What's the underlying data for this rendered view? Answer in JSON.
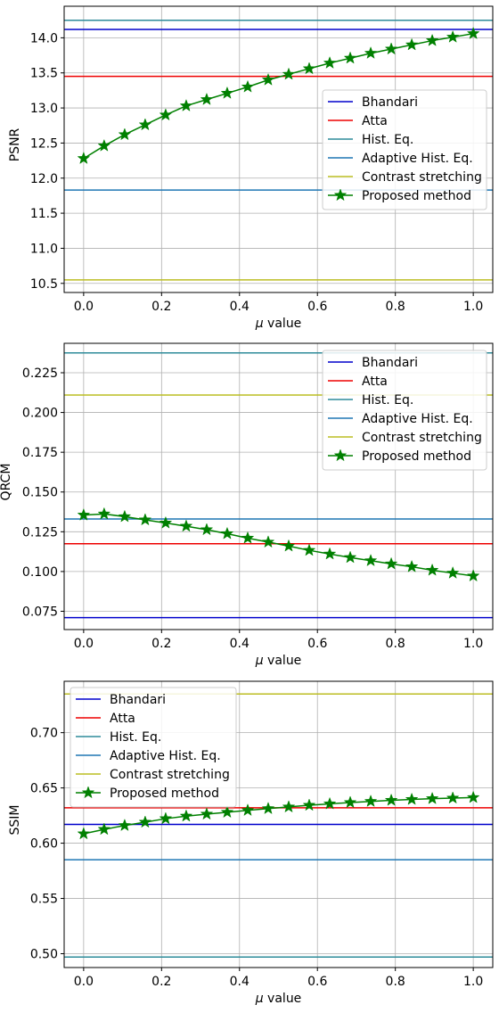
{
  "chart_data": [
    {
      "type": "line",
      "xlabel_prefix": "μ",
      "xlabel_rest": " value",
      "ylabel": "PSNR",
      "xlim": [
        -0.05,
        1.05
      ],
      "ylim": [
        10.37,
        14.45
      ],
      "xticks": [
        0.0,
        0.2,
        0.4,
        0.6,
        0.8,
        1.0
      ],
      "xtick_labels": [
        "0.0",
        "0.2",
        "0.4",
        "0.6",
        "0.8",
        "1.0"
      ],
      "yticks": [
        10.5,
        11.0,
        11.5,
        12.0,
        12.5,
        13.0,
        13.5,
        14.0
      ],
      "ytick_labels": [
        "10.5",
        "11.0",
        "11.5",
        "12.0",
        "12.5",
        "13.0",
        "13.5",
        "14.0"
      ],
      "grid": true,
      "legend_position": "center-right",
      "baselines": [
        {
          "name": "Bhandari",
          "value": 14.12,
          "color": "#0000cc"
        },
        {
          "name": "Atta",
          "value": 13.45,
          "color": "#ee0000"
        },
        {
          "name": "Hist. Eq.",
          "value": 14.25,
          "color": "#2e8b9a"
        },
        {
          "name": "Adaptive Hist. Eq.",
          "value": 11.83,
          "color": "#1f77b4"
        },
        {
          "name": "Contrast stretching",
          "value": 10.55,
          "color": "#bcbd22"
        }
      ],
      "series": [
        {
          "name": "Proposed method",
          "color": "#008000",
          "x": [
            0.0,
            0.0526,
            0.1053,
            0.1579,
            0.2105,
            0.2632,
            0.3158,
            0.3684,
            0.4211,
            0.4737,
            0.5263,
            0.5789,
            0.6316,
            0.6842,
            0.7368,
            0.7895,
            0.8421,
            0.8947,
            0.9474,
            1.0
          ],
          "y": [
            12.28,
            12.46,
            12.62,
            12.76,
            12.9,
            13.03,
            13.12,
            13.21,
            13.3,
            13.4,
            13.48,
            13.56,
            13.64,
            13.71,
            13.78,
            13.84,
            13.9,
            13.96,
            14.01,
            14.06
          ]
        }
      ]
    },
    {
      "type": "line",
      "xlabel_prefix": "μ",
      "xlabel_rest": " value",
      "ylabel": "QRCM",
      "xlim": [
        -0.05,
        1.05
      ],
      "ylim": [
        0.0635,
        0.2435
      ],
      "xticks": [
        0.0,
        0.2,
        0.4,
        0.6,
        0.8,
        1.0
      ],
      "xtick_labels": [
        "0.0",
        "0.2",
        "0.4",
        "0.6",
        "0.8",
        "1.0"
      ],
      "yticks": [
        0.075,
        0.1,
        0.125,
        0.15,
        0.175,
        0.2,
        0.225
      ],
      "ytick_labels": [
        "0.075",
        "0.100",
        "0.125",
        "0.150",
        "0.175",
        "0.200",
        "0.225"
      ],
      "grid": true,
      "legend_position": "top-right",
      "baselines": [
        {
          "name": "Bhandari",
          "value": 0.071,
          "color": "#0000cc"
        },
        {
          "name": "Atta",
          "value": 0.1175,
          "color": "#ee0000"
        },
        {
          "name": "Hist. Eq.",
          "value": 0.2375,
          "color": "#2e8b9a"
        },
        {
          "name": "Adaptive Hist. Eq.",
          "value": 0.133,
          "color": "#1f77b4"
        },
        {
          "name": "Contrast stretching",
          "value": 0.211,
          "color": "#bcbd22"
        }
      ],
      "series": [
        {
          "name": "Proposed method",
          "color": "#008000",
          "x": [
            0.0,
            0.0526,
            0.1053,
            0.1579,
            0.2105,
            0.2632,
            0.3158,
            0.3684,
            0.4211,
            0.4737,
            0.5263,
            0.5789,
            0.6316,
            0.6842,
            0.7368,
            0.7895,
            0.8421,
            0.8947,
            0.9474,
            1.0
          ],
          "y": [
            0.1355,
            0.1362,
            0.1345,
            0.1325,
            0.1305,
            0.1285,
            0.1263,
            0.1238,
            0.121,
            0.1185,
            0.116,
            0.1133,
            0.111,
            0.1088,
            0.1068,
            0.1048,
            0.103,
            0.1008,
            0.099,
            0.0972
          ]
        }
      ]
    },
    {
      "type": "line",
      "xlabel_prefix": "μ",
      "xlabel_rest": " value",
      "ylabel": "SSIM",
      "xlim": [
        -0.05,
        1.05
      ],
      "ylim": [
        0.4875,
        0.7465
      ],
      "xticks": [
        0.0,
        0.2,
        0.4,
        0.6,
        0.8,
        1.0
      ],
      "xtick_labels": [
        "0.0",
        "0.2",
        "0.4",
        "0.6",
        "0.8",
        "1.0"
      ],
      "yticks": [
        0.5,
        0.55,
        0.6,
        0.65,
        0.7
      ],
      "ytick_labels": [
        "0.50",
        "0.55",
        "0.60",
        "0.65",
        "0.70"
      ],
      "grid": true,
      "legend_position": "top-left",
      "baselines": [
        {
          "name": "Bhandari",
          "value": 0.617,
          "color": "#0000cc"
        },
        {
          "name": "Atta",
          "value": 0.632,
          "color": "#ee0000"
        },
        {
          "name": "Hist. Eq.",
          "value": 0.497,
          "color": "#2e8b9a"
        },
        {
          "name": "Adaptive Hist. Eq.",
          "value": 0.585,
          "color": "#1f77b4"
        },
        {
          "name": "Contrast stretching",
          "value": 0.735,
          "color": "#bcbd22"
        }
      ],
      "series": [
        {
          "name": "Proposed method",
          "color": "#008000",
          "x": [
            0.0,
            0.0526,
            0.1053,
            0.1579,
            0.2105,
            0.2632,
            0.3158,
            0.3684,
            0.4211,
            0.4737,
            0.5263,
            0.5789,
            0.6316,
            0.6842,
            0.7368,
            0.7895,
            0.8421,
            0.8947,
            0.9474,
            1.0
          ],
          "y": [
            0.6085,
            0.6125,
            0.616,
            0.619,
            0.6222,
            0.6245,
            0.6263,
            0.628,
            0.6297,
            0.6313,
            0.6328,
            0.6343,
            0.6356,
            0.6368,
            0.6378,
            0.6388,
            0.6396,
            0.6403,
            0.6408,
            0.6413
          ]
        }
      ]
    }
  ]
}
